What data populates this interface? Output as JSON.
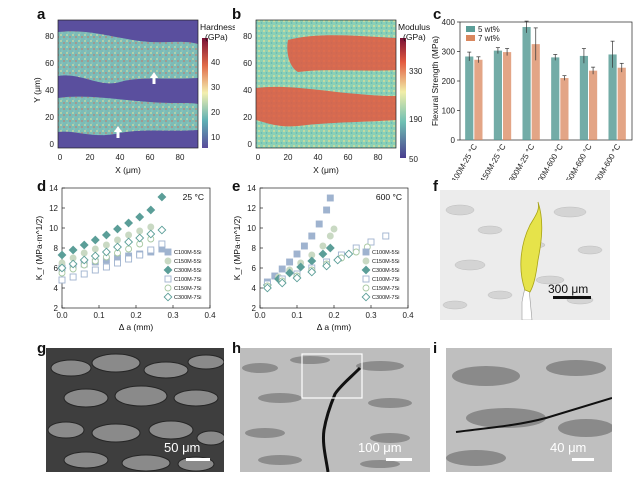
{
  "panels": {
    "a": "a",
    "b": "b",
    "c": "c",
    "d": "d",
    "e": "e",
    "f": "f",
    "g": "g",
    "h": "h",
    "i": "i"
  },
  "map_a": {
    "colorbar_title_1": "Hardness",
    "colorbar_title_2": "(GPa)",
    "colorbar_ticks": [
      "40",
      "30",
      "20",
      "10"
    ],
    "xlabel": "X (μm)",
    "ylabel": "Y (μm)",
    "xticks": [
      "0",
      "20",
      "40",
      "60",
      "80"
    ],
    "yticks": [
      "0",
      "20",
      "40",
      "60",
      "80"
    ]
  },
  "map_b": {
    "colorbar_title_1": "Modulus",
    "colorbar_title_2": "(GPa)",
    "colorbar_ticks": [
      "330",
      "190",
      "50"
    ],
    "xlabel": "X (μm)",
    "xticks": [
      "0",
      "20",
      "40",
      "60",
      "80"
    ],
    "yticks": [
      "0",
      "20",
      "40",
      "60",
      "80"
    ]
  },
  "chart_data": [
    {
      "id": "c",
      "type": "bar",
      "ylabel": "Flexural Strength (MPa)",
      "ylim": [
        0,
        400
      ],
      "yticks": [
        "0",
        "100",
        "200",
        "300",
        "400"
      ],
      "categories": [
        "100M-25 °C",
        "150M-25 °C",
        "300M-25 °C",
        "100M-600 °C",
        "150M-600 °C",
        "300M-600 °C"
      ],
      "series": [
        {
          "name": "5 wt%",
          "color": "#5b9e98",
          "values": [
            283,
            303,
            383,
            280,
            285,
            290
          ],
          "errors": [
            15,
            10,
            20,
            10,
            25,
            45
          ]
        },
        {
          "name": "7 wt%",
          "color": "#d9875e",
          "values": [
            272,
            298,
            325,
            210,
            235,
            245
          ],
          "errors": [
            10,
            12,
            55,
            8,
            12,
            15
          ]
        }
      ]
    },
    {
      "id": "d",
      "type": "scatter",
      "annotation": "25 °C",
      "xlabel": "Δ a (mm)",
      "ylabel": "K_r (MPa·m^1/2)",
      "xlim": [
        0,
        0.4
      ],
      "ylim": [
        2,
        14
      ],
      "xticks": [
        "0.0",
        "0.1",
        "0.2",
        "0.3",
        "0.4"
      ],
      "yticks": [
        "2",
        "4",
        "6",
        "8",
        "10",
        "12",
        "14"
      ],
      "series": [
        {
          "name": "C100M-5Si",
          "marker": "square-filled",
          "color": "#9fb3cf",
          "points": [
            [
              0.0,
              6.0
            ],
            [
              0.03,
              6.2
            ],
            [
              0.06,
              6.4
            ],
            [
              0.09,
              6.6
            ],
            [
              0.12,
              6.8
            ],
            [
              0.15,
              7.0
            ],
            [
              0.18,
              7.2
            ],
            [
              0.21,
              7.4
            ],
            [
              0.24,
              7.6
            ],
            [
              0.27,
              7.9
            ]
          ]
        },
        {
          "name": "C150M-5Si",
          "marker": "circle-filled",
          "color": "#c9d9c3",
          "points": [
            [
              0.0,
              6.5
            ],
            [
              0.03,
              7.0
            ],
            [
              0.06,
              7.5
            ],
            [
              0.09,
              7.9
            ],
            [
              0.12,
              8.3
            ],
            [
              0.15,
              8.8
            ],
            [
              0.18,
              9.3
            ],
            [
              0.21,
              9.7
            ],
            [
              0.24,
              10.1
            ]
          ]
        },
        {
          "name": "C300M-5Si",
          "marker": "diamond-filled",
          "color": "#5b9e98",
          "points": [
            [
              0.0,
              7.3
            ],
            [
              0.03,
              7.8
            ],
            [
              0.06,
              8.3
            ],
            [
              0.09,
              8.8
            ],
            [
              0.12,
              9.3
            ],
            [
              0.15,
              9.9
            ],
            [
              0.18,
              10.5
            ],
            [
              0.21,
              11.1
            ],
            [
              0.24,
              11.8
            ],
            [
              0.27,
              13.1
            ]
          ]
        },
        {
          "name": "C100M-7Si",
          "marker": "square-open",
          "color": "#9fb3cf",
          "points": [
            [
              0.0,
              4.8
            ],
            [
              0.03,
              5.1
            ],
            [
              0.06,
              5.4
            ],
            [
              0.09,
              5.8
            ],
            [
              0.12,
              6.1
            ],
            [
              0.15,
              6.5
            ],
            [
              0.18,
              6.9
            ],
            [
              0.21,
              7.3
            ],
            [
              0.24,
              7.8
            ],
            [
              0.27,
              8.4
            ]
          ]
        },
        {
          "name": "C150M-7Si",
          "marker": "circle-open",
          "color": "#a9c9a3",
          "points": [
            [
              0.0,
              5.5
            ],
            [
              0.03,
              5.9
            ],
            [
              0.06,
              6.3
            ],
            [
              0.09,
              6.7
            ],
            [
              0.12,
              7.1
            ],
            [
              0.15,
              7.5
            ],
            [
              0.18,
              7.9
            ],
            [
              0.21,
              8.4
            ],
            [
              0.24,
              8.9
            ]
          ]
        },
        {
          "name": "C300M-7Si",
          "marker": "diamond-open",
          "color": "#5b9e98",
          "points": [
            [
              0.0,
              6.0
            ],
            [
              0.03,
              6.4
            ],
            [
              0.06,
              6.8
            ],
            [
              0.09,
              7.2
            ],
            [
              0.12,
              7.6
            ],
            [
              0.15,
              8.1
            ],
            [
              0.18,
              8.6
            ],
            [
              0.21,
              9.0
            ],
            [
              0.24,
              9.4
            ],
            [
              0.27,
              9.8
            ]
          ]
        }
      ]
    },
    {
      "id": "e",
      "type": "scatter",
      "annotation": "600 °C",
      "xlabel": "Δ a (mm)",
      "ylabel": "K_r (MPa·m^1/2)",
      "xlim": [
        0,
        0.4
      ],
      "ylim": [
        2,
        14
      ],
      "xticks": [
        "0.0",
        "0.1",
        "0.2",
        "0.3",
        "0.4"
      ],
      "yticks": [
        "2",
        "4",
        "6",
        "8",
        "10",
        "12",
        "14"
      ],
      "series": [
        {
          "name": "C100M-5Si",
          "marker": "square-filled",
          "color": "#9fb3cf",
          "points": [
            [
              0.02,
              4.6
            ],
            [
              0.04,
              5.2
            ],
            [
              0.06,
              5.9
            ],
            [
              0.08,
              6.6
            ],
            [
              0.1,
              7.4
            ],
            [
              0.12,
              8.2
            ],
            [
              0.14,
              9.2
            ],
            [
              0.16,
              10.4
            ],
            [
              0.18,
              11.8
            ],
            [
              0.19,
              13.0
            ]
          ]
        },
        {
          "name": "C150M-5Si",
          "marker": "circle-filled",
          "color": "#c9d9c3",
          "points": [
            [
              0.02,
              4.4
            ],
            [
              0.05,
              5.1
            ],
            [
              0.08,
              5.8
            ],
            [
              0.11,
              6.5
            ],
            [
              0.14,
              7.3
            ],
            [
              0.17,
              8.2
            ],
            [
              0.19,
              9.2
            ],
            [
              0.2,
              9.9
            ]
          ]
        },
        {
          "name": "C300M-5Si",
          "marker": "diamond-filled",
          "color": "#5b9e98",
          "points": [
            [
              0.02,
              4.3
            ],
            [
              0.05,
              4.9
            ],
            [
              0.08,
              5.5
            ],
            [
              0.11,
              6.1
            ],
            [
              0.14,
              6.7
            ],
            [
              0.17,
              7.4
            ],
            [
              0.19,
              8.0
            ]
          ]
        },
        {
          "name": "C100M-7Si",
          "marker": "square-open",
          "color": "#9fb3cf",
          "points": [
            [
              0.02,
              4.4
            ],
            [
              0.06,
              4.9
            ],
            [
              0.1,
              5.4
            ],
            [
              0.14,
              6.0
            ],
            [
              0.18,
              6.6
            ],
            [
              0.22,
              7.3
            ],
            [
              0.26,
              8.0
            ],
            [
              0.3,
              8.6
            ],
            [
              0.34,
              9.2
            ]
          ]
        },
        {
          "name": "C150M-7Si",
          "marker": "circle-open",
          "color": "#a9c9a3",
          "points": [
            [
              0.02,
              4.2
            ],
            [
              0.06,
              4.7
            ],
            [
              0.1,
              5.2
            ],
            [
              0.14,
              5.8
            ],
            [
              0.18,
              6.4
            ],
            [
              0.22,
              7.0
            ],
            [
              0.26,
              7.6
            ],
            [
              0.29,
              8.1
            ]
          ]
        },
        {
          "name": "C300M-7Si",
          "marker": "diamond-open",
          "color": "#5b9e98",
          "points": [
            [
              0.02,
              4.0
            ],
            [
              0.06,
              4.5
            ],
            [
              0.1,
              5.0
            ],
            [
              0.14,
              5.6
            ],
            [
              0.18,
              6.2
            ],
            [
              0.21,
              6.8
            ],
            [
              0.24,
              7.4
            ]
          ]
        }
      ]
    }
  ],
  "legend_c": [
    "5 wt%",
    "7 wt%"
  ],
  "legend_de": [
    "C100M-5Si",
    "C150M-5Si",
    "C300M-5Si",
    "C100M-7Si",
    "C150M-7Si",
    "C300M-7Si"
  ],
  "scalebars": {
    "f": "300 μm",
    "g": "50 μm",
    "h": "100 μm",
    "i": "40 μm"
  }
}
